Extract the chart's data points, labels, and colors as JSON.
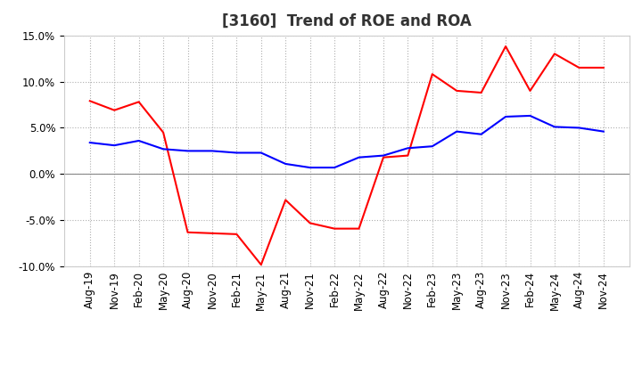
{
  "title": "[3160]  Trend of ROE and ROA",
  "roe_data": {
    "labels": [
      "Aug-19",
      "Nov-19",
      "Feb-20",
      "May-20",
      "Aug-20",
      "Nov-20",
      "Feb-21",
      "May-21",
      "Aug-21",
      "Nov-21",
      "Feb-22",
      "May-22",
      "Aug-22",
      "Nov-22",
      "Feb-23",
      "May-23",
      "Aug-23",
      "Nov-23",
      "Feb-24",
      "May-24",
      "Aug-24",
      "Nov-24"
    ],
    "values": [
      7.9,
      6.9,
      7.8,
      4.5,
      -6.3,
      -6.4,
      -6.5,
      -9.8,
      -2.8,
      -5.3,
      -5.9,
      -5.9,
      1.8,
      2.0,
      10.8,
      9.0,
      8.8,
      13.8,
      9.0,
      13.0,
      11.5,
      11.5
    ]
  },
  "roa_data": {
    "labels": [
      "Aug-19",
      "Nov-19",
      "Feb-20",
      "May-20",
      "Aug-20",
      "Nov-20",
      "Feb-21",
      "May-21",
      "Aug-21",
      "Nov-21",
      "Feb-22",
      "May-22",
      "Aug-22",
      "Nov-22",
      "Feb-23",
      "May-23",
      "Aug-23",
      "Nov-23",
      "Feb-24",
      "May-24",
      "Aug-24",
      "Nov-24"
    ],
    "values": [
      3.4,
      3.1,
      3.6,
      2.7,
      2.5,
      2.5,
      2.3,
      2.3,
      1.1,
      0.7,
      0.7,
      1.8,
      2.0,
      2.8,
      3.0,
      4.6,
      4.3,
      6.2,
      6.3,
      5.1,
      5.0,
      4.6
    ]
  },
  "roe_color": "#ff0000",
  "roa_color": "#0000ff",
  "ylim": [
    -10.0,
    15.0
  ],
  "yticks": [
    -10.0,
    -5.0,
    0.0,
    5.0,
    10.0,
    15.0
  ],
  "background_color": "#ffffff",
  "plot_bg_color": "#ffffff",
  "grid_color": "#b0b0b0",
  "title_fontsize": 12,
  "legend_fontsize": 10,
  "tick_fontsize": 8.5
}
